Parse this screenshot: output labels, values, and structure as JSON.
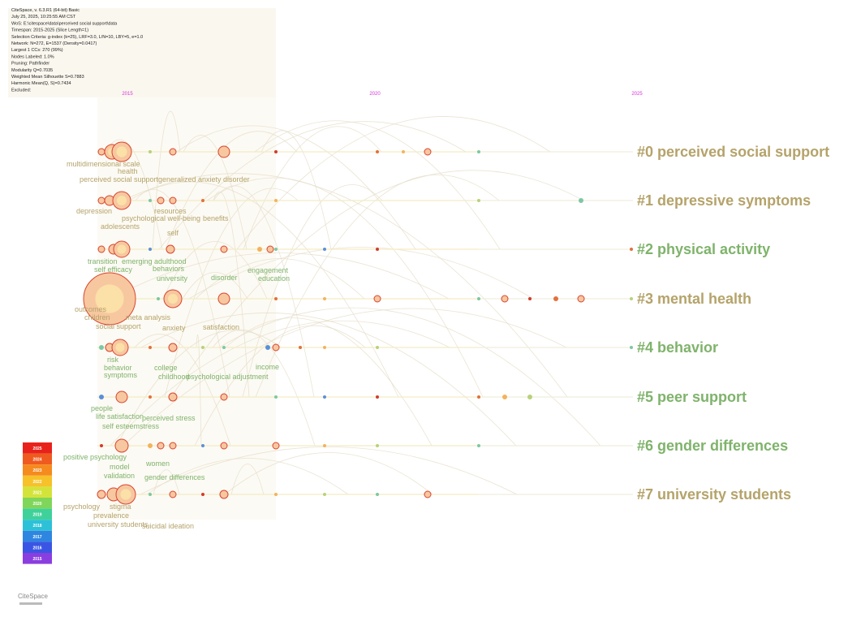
{
  "header": {
    "lines": [
      "CiteSpace, v. 6.3.R1 (64-bit) Basic",
      "July 25, 2025, 10:25:55 AM CST",
      "WoS: E:\\citespace\\data\\perceived social support\\data",
      "Timespan: 2015-2025 (Slice Length=1)",
      "Selection Criteria: g-index (k=25), LRF=3.0, L/N=10, LBY=5, e=1.0",
      "Network: N=272, E=1537 (Density=0.0417)",
      "Largest 1 CCs: 270 (99%)",
      "Nodes Labeled: 1.0%",
      "Pruning: Pathfinder",
      "Modularity Q=0.7035",
      "Weighted Mean Silhouette S=0.7883",
      "Harmonic Mean(Q, S)=0.7434",
      "Excluded:"
    ]
  },
  "timeline": {
    "years": [
      "2015",
      "2020",
      "2025"
    ]
  },
  "clusters": [
    {
      "label": "#0 perceived social support",
      "nodes": [
        "multidimensional scale",
        "health",
        "perceived social support",
        "generalized anxiety disorder"
      ]
    },
    {
      "label": "#1 depressive symptoms",
      "nodes": [
        "resources",
        "depression",
        "psychological well-being",
        "benefits",
        "adolescents",
        "self"
      ]
    },
    {
      "label": "#2 physical activity",
      "nodes": [
        "transition",
        "emerging adulthood",
        "self efficacy",
        "behaviors",
        "university",
        "disorder",
        "engagement",
        "education"
      ]
    },
    {
      "label": "#3 mental health",
      "nodes": [
        "outcomes",
        "children",
        "meta analysis",
        "social support",
        "anxiety",
        "satisfaction"
      ]
    },
    {
      "label": "#4 behavior",
      "nodes": [
        "risk",
        "behavior",
        "symptoms",
        "college",
        "childhood",
        "psychological adjustment",
        "income"
      ]
    },
    {
      "label": "#5 peer support",
      "nodes": [
        "people",
        "life satisfaction",
        "self esteem",
        "perceived stress",
        "stress"
      ]
    },
    {
      "label": "#6 gender differences",
      "nodes": [
        "positive psychology",
        "model",
        "women",
        "validation",
        "gender differences"
      ]
    },
    {
      "label": "#7 university students",
      "nodes": [
        "psychology",
        "stigma",
        "prevalence",
        "university students",
        "suicidal ideation"
      ]
    }
  ],
  "legend": {
    "years": [
      "2025",
      "2024",
      "2023",
      "2022",
      "2021",
      "2020",
      "2019",
      "2018",
      "2017",
      "2016",
      "2015"
    ]
  },
  "logo": "CiteSpace"
}
